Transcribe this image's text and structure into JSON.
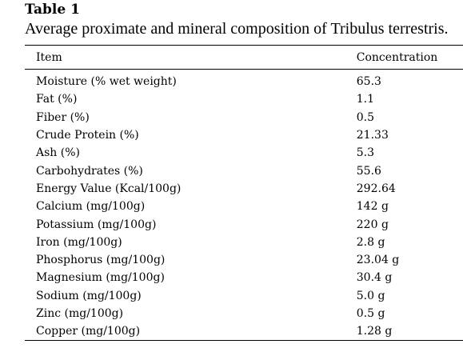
{
  "table": {
    "label": "Table 1",
    "caption": "Average proximate and mineral composition of Tribulus terrestris.",
    "headers": {
      "item": "Item",
      "concentration": "Concentration"
    },
    "rows": [
      {
        "item": "Moisture (% wet weight)",
        "concentration": "65.3"
      },
      {
        "item": "Fat (%)",
        "concentration": "1.1"
      },
      {
        "item": "Fiber (%)",
        "concentration": "0.5"
      },
      {
        "item": "Crude Protein (%)",
        "concentration": "21.33"
      },
      {
        "item": "Ash (%)",
        "concentration": "5.3"
      },
      {
        "item": "Carbohydrates (%)",
        "concentration": "55.6"
      },
      {
        "item": "Energy Value (Kcal/100g)",
        "concentration": "292.64"
      },
      {
        "item": "Calcium (mg/100g)",
        "concentration": "142 g"
      },
      {
        "item": "Potassium (mg/100g)",
        "concentration": "220 g"
      },
      {
        "item": "Iron (mg/100g)",
        "concentration": "2.8 g"
      },
      {
        "item": "Phosphorus (mg/100g)",
        "concentration": "23.04 g"
      },
      {
        "item": "Magnesium (mg/100g)",
        "concentration": "30.4 g"
      },
      {
        "item": "Sodium (mg/100g)",
        "concentration": "5.0 g"
      },
      {
        "item": "Zinc (mg/100g)",
        "concentration": "0.5 g"
      },
      {
        "item": "Copper (mg/100g)",
        "concentration": "1.28 g"
      }
    ]
  }
}
